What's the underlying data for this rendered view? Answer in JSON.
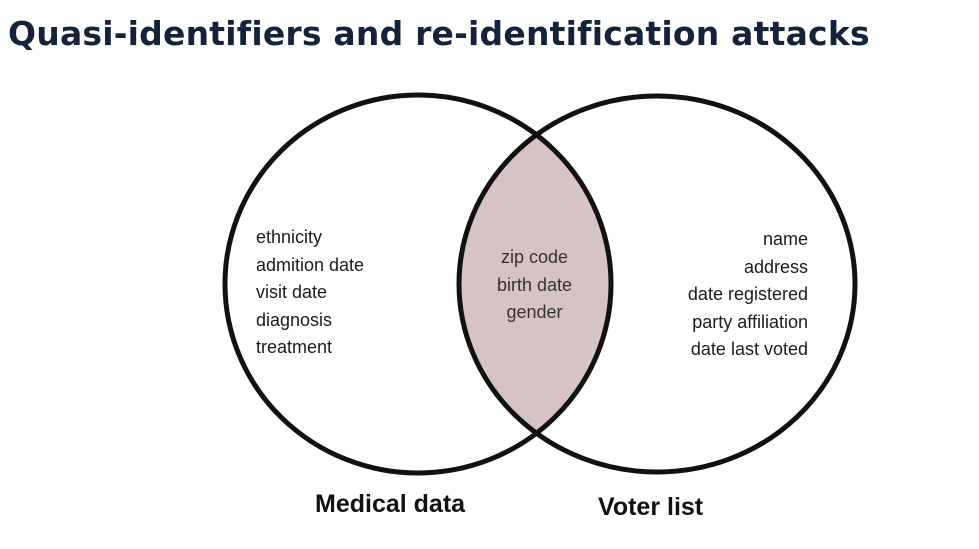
{
  "title": "Quasi-identifiers and re-identification attacks",
  "colors": {
    "title": "#15233a",
    "outline": "#111111",
    "overlap_fill": "#d6c4c4"
  },
  "sets": {
    "left": {
      "label": "Medical data",
      "items": [
        "ethnicity",
        "admition date",
        "visit date",
        "diagnosis",
        "treatment"
      ]
    },
    "right": {
      "label": "Voter list",
      "items": [
        "name",
        "address",
        "date registered",
        "party affiliation",
        "date last voted"
      ]
    },
    "overlap": {
      "items": [
        "zip code",
        "birth date",
        "gender"
      ]
    }
  }
}
